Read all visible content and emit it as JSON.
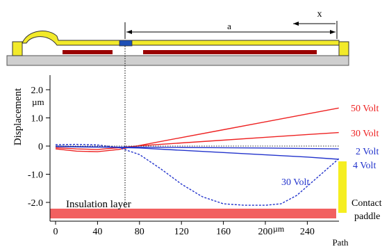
{
  "diagram": {
    "dimension_a": "a",
    "dimension_x": "x"
  },
  "chart_data": {
    "type": "line",
    "title": "",
    "xlabel": "Path",
    "x_unit": "µm",
    "ylabel": "Displacement",
    "y_unit": "µm",
    "xlim": [
      0,
      280
    ],
    "ylim": [
      -2.5,
      2.5
    ],
    "x_ticks": [
      0,
      40,
      80,
      120,
      160,
      200,
      240
    ],
    "y_ticks": [
      2.0,
      1.0,
      0,
      -1.0,
      -2.0
    ],
    "y_tick_labels": [
      "2.0",
      "1.0",
      "0",
      "-1.0",
      "-2.0"
    ],
    "x_tick_labels": [
      "0",
      "40",
      "80",
      "120",
      "160",
      "200",
      "240"
    ],
    "series": [
      {
        "name": "50 Volt",
        "color": "#ee2222",
        "style": "solid",
        "x": [
          0,
          20,
          40,
          60,
          80,
          120,
          160,
          200,
          240,
          270
        ],
        "y": [
          -0.1,
          -0.18,
          -0.2,
          -0.12,
          0.02,
          0.3,
          0.58,
          0.86,
          1.14,
          1.35
        ]
      },
      {
        "name": "30 Volt",
        "color": "#ee2222",
        "style": "solid",
        "x": [
          0,
          20,
          40,
          60,
          80,
          120,
          160,
          200,
          240,
          270
        ],
        "y": [
          -0.06,
          -0.1,
          -0.12,
          -0.06,
          0.01,
          0.11,
          0.21,
          0.31,
          0.41,
          0.48
        ]
      },
      {
        "name": "2 Volt",
        "color": "#2233cc",
        "style": "solid",
        "x": [
          0,
          40,
          80,
          120,
          160,
          200,
          240,
          270
        ],
        "y": [
          -0.02,
          -0.04,
          -0.04,
          -0.05,
          -0.06,
          -0.07,
          -0.09,
          -0.1
        ]
      },
      {
        "name": "4 Volt",
        "color": "#2233cc",
        "style": "solid",
        "x": [
          0,
          20,
          40,
          60,
          80,
          120,
          160,
          200,
          240,
          270
        ],
        "y": [
          0.0,
          -0.02,
          -0.03,
          -0.05,
          -0.07,
          -0.15,
          -0.23,
          -0.31,
          -0.39,
          -0.47
        ]
      },
      {
        "name": "30 Volt",
        "color": "#2233cc",
        "style": "dashed",
        "x": [
          0,
          20,
          40,
          60,
          80,
          100,
          120,
          140,
          160,
          180,
          200,
          215,
          230,
          250,
          270
        ],
        "y": [
          0.05,
          0.06,
          0.04,
          -0.05,
          -0.3,
          -0.8,
          -1.35,
          -1.8,
          -2.05,
          -2.1,
          -2.1,
          -2.05,
          -1.75,
          -1.1,
          -0.45
        ]
      },
      {
        "name": "",
        "color": "#333333",
        "style": "dotted",
        "x": [
          0,
          270
        ],
        "y": [
          0,
          0
        ]
      }
    ],
    "series_labels": [
      "50 Volt",
      "30 Volt",
      "2 Volt",
      "4 Volt",
      "30 Volt"
    ],
    "annotations": {
      "insulation": "Insulation layer",
      "contact_line1": "Contact",
      "contact_line2": "paddle"
    }
  }
}
